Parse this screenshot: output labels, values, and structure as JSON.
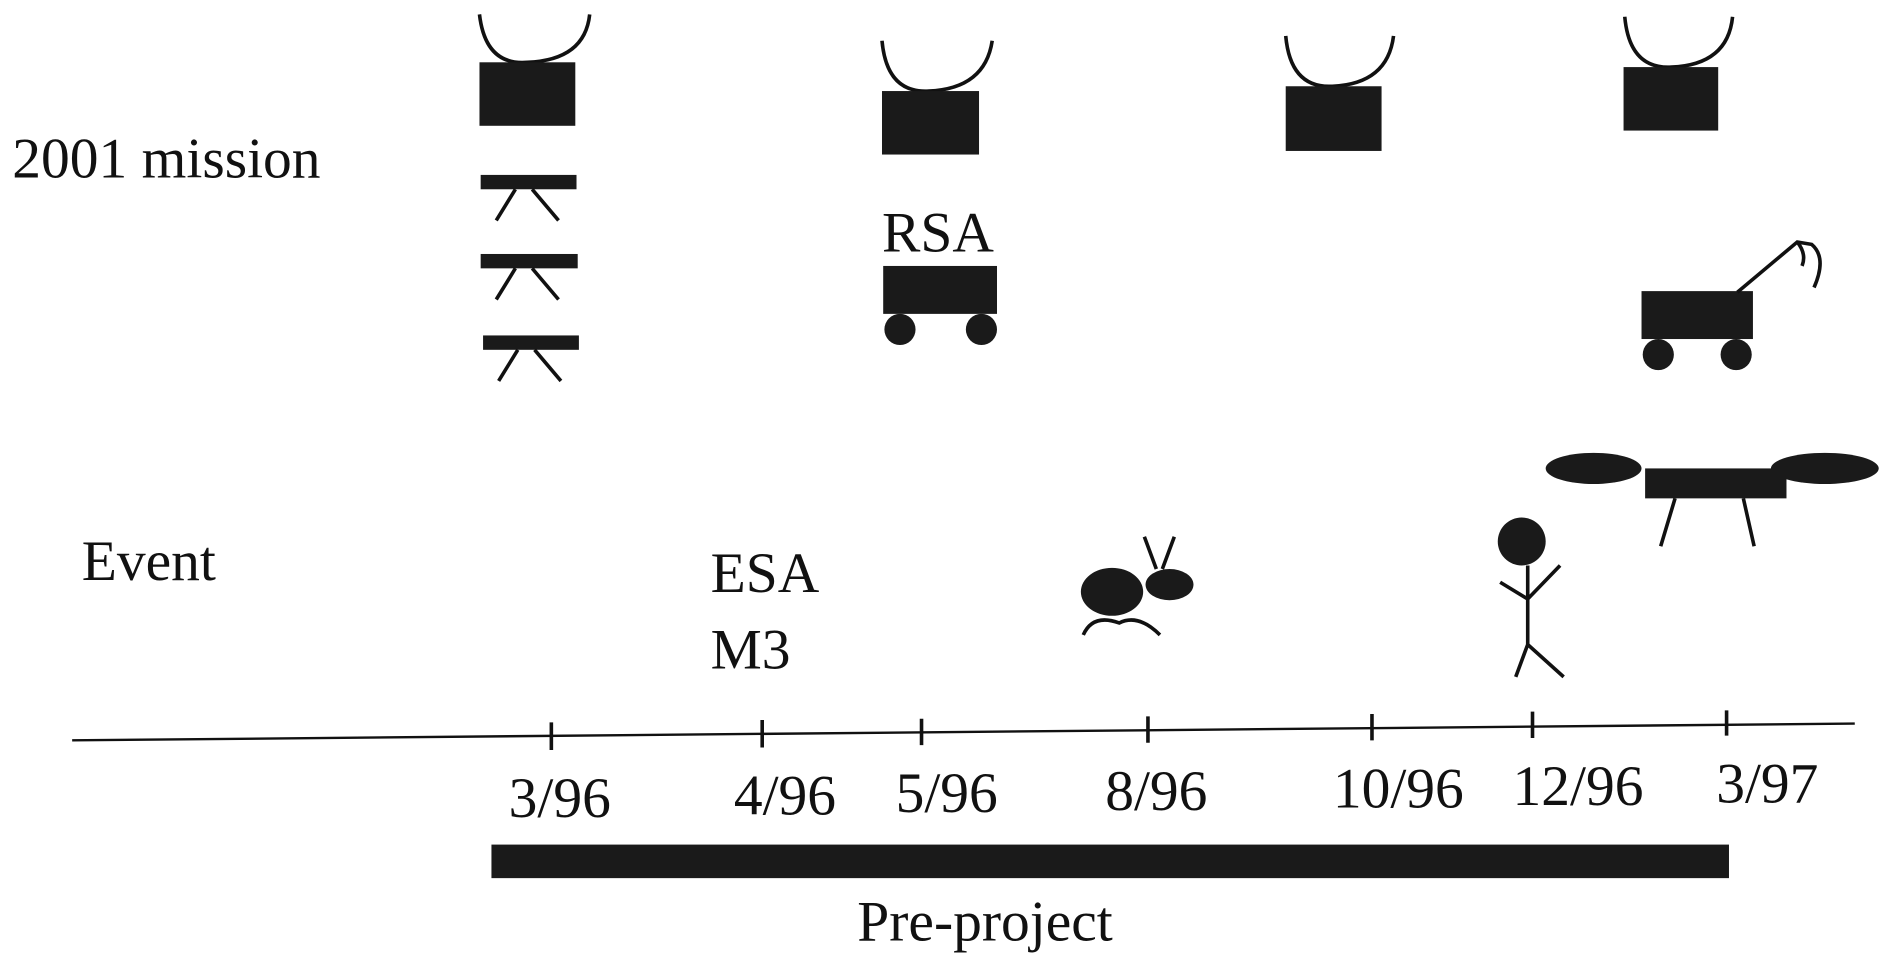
{
  "row_labels": {
    "mission": "2001 mission",
    "event": "Event"
  },
  "mission_labels": [
    "RSA"
  ],
  "event_labels": [
    "ESA",
    "M3"
  ],
  "timeline": {
    "ticks": [
      "3/96",
      "4/96",
      "5/96",
      "8/96",
      "10/96",
      "12/96",
      "3/97"
    ]
  },
  "phase": "Pre-project"
}
